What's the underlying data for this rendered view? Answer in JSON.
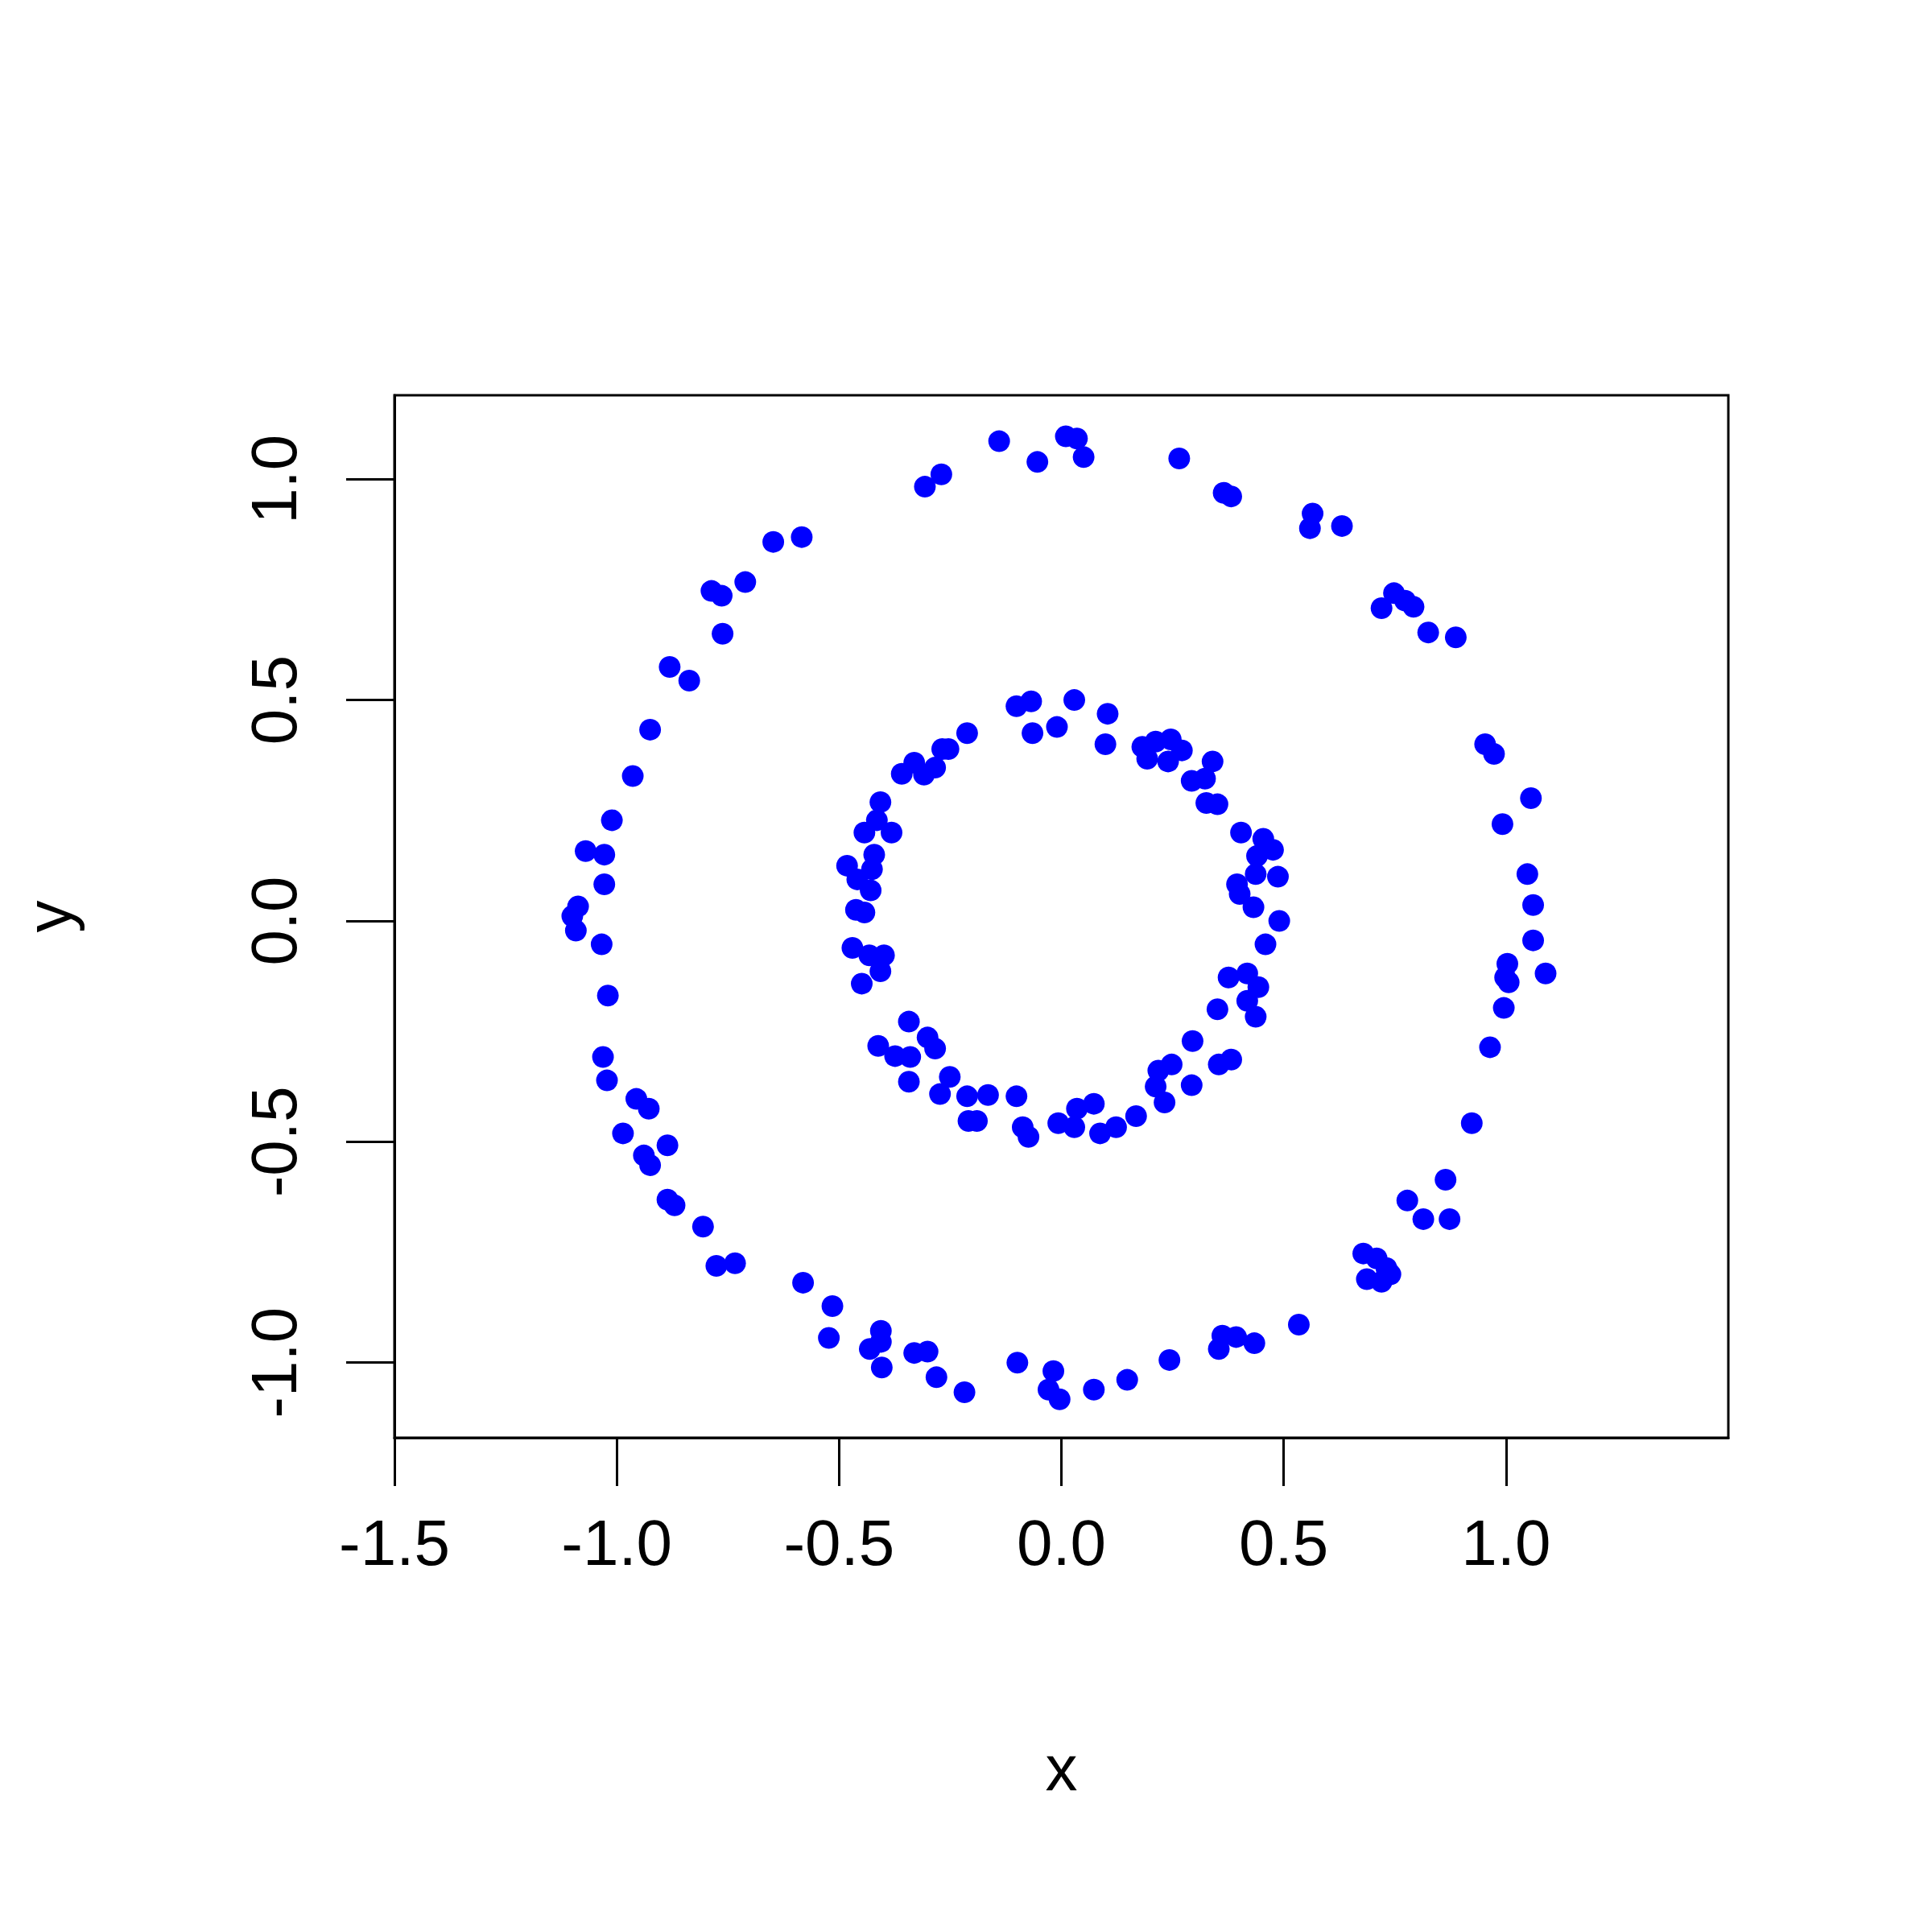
{
  "chart_data": {
    "type": "scatter",
    "xlabel": "x",
    "ylabel": "y",
    "xlim": [
      -1.5,
      1.5
    ],
    "ylim": [
      -1.17,
      1.19
    ],
    "xticks": [
      -1.5,
      {
        "value": -1,
        "label": "-1.0"
      },
      -0.5,
      {
        "value": 0,
        "label": "0.0"
      },
      0.5,
      {
        "value": 1,
        "label": "1.0"
      }
    ],
    "yticks": [
      {
        "value": -1,
        "label": "-1.0"
      },
      -0.5,
      {
        "value": 0,
        "label": "0.0"
      },
      0.5,
      {
        "value": 1,
        "label": "1.0"
      }
    ],
    "grid": false,
    "marker": "circle",
    "series": [
      {
        "color": "#0000ff",
        "x": [
          -0.14,
          0.01,
          0.035,
          0.05,
          -0.054,
          -0.307,
          -0.27,
          0.265,
          0.365,
          0.382,
          0.565,
          0.559,
          0.631,
          -0.648,
          -0.584,
          -0.787,
          -0.764,
          -0.711,
          -0.762,
          0.72,
          0.748,
          0.773,
          0.792,
          0.825,
          0.887,
          -0.881,
          -0.837,
          -0.925,
          -0.964,
          0.953,
          0.973,
          1.056,
          0.992,
          -1.011,
          -1.07,
          -1.028,
          -1.028,
          1.048,
          1.061,
          -1.087,
          -1.1,
          -1.092,
          -1.034,
          1.061,
          1.003,
          0.998,
          1.006,
          1.089,
          0.995,
          -1.02,
          0.964,
          -1.031,
          -1.022,
          -0.956,
          -0.928,
          0.923,
          -0.986,
          -0.886,
          -0.939,
          -0.925,
          0.864,
          0.778,
          -0.886,
          -0.87,
          0.814,
          0.873,
          -0.806,
          -0.776,
          -0.734,
          0.679,
          0.709,
          0.731,
          0.74,
          0.687,
          0.72,
          -0.581,
          -0.515,
          -0.523,
          0.534,
          -0.406,
          -0.406,
          -0.431,
          -0.404,
          -0.331,
          -0.301,
          -0.281,
          -0.218,
          0.362,
          0.393,
          0.434,
          0.354,
          0.243,
          0.148,
          -0.099,
          -0.018,
          -0.029,
          -0.004,
          0.073,
          -0.101,
          -0.068,
          0.029,
          0.104,
          0.099,
          -0.01,
          -0.065,
          -0.212,
          -0.254,
          -0.268,
          -0.331,
          -0.284,
          -0.309,
          -0.359,
          -0.407,
          -0.415,
          -0.382,
          -0.443,
          -0.421,
          -0.426,
          -0.482,
          -0.459,
          -0.429,
          -0.462,
          -0.443,
          -0.47,
          -0.432,
          -0.399,
          -0.407,
          -0.449,
          -0.343,
          -0.412,
          -0.374,
          -0.34,
          -0.301,
          -0.284,
          -0.343,
          -0.251,
          -0.273,
          -0.212,
          -0.165,
          -0.209,
          -0.19,
          -0.101,
          -0.087,
          -0.074,
          -0.007,
          0.029,
          0.035,
          0.073,
          0.087,
          0.123,
          0.168,
          0.232,
          0.212,
          0.218,
          0.248,
          0.293,
          0.295,
          0.354,
          0.382,
          0.351,
          0.376,
          0.418,
          0.443,
          0.418,
          0.437,
          0.459,
          0.49,
          0.432,
          0.401,
          0.395,
          0.487,
          0.437,
          0.44,
          0.476,
          0.454,
          0.404,
          0.326,
          0.351,
          0.323,
          0.293,
          0.34,
          0.271,
          0.246,
          0.212,
          0.182,
          0.193,
          0.24
        ],
        "values": [
          1.086,
          1.097,
          1.092,
          1.05,
          1.039,
          0.983,
          1.011,
          1.047,
          0.969,
          0.961,
          0.922,
          0.889,
          0.894,
          0.858,
          0.869,
          0.747,
          0.736,
          0.767,
          0.65,
          0.708,
          0.742,
          0.725,
          0.711,
          0.653,
          0.642,
          0.575,
          0.544,
          0.433,
          0.328,
          0.4,
          0.378,
          0.278,
          0.219,
          0.228,
          0.158,
          0.15,
          0.083,
          0.106,
          0.036,
          0.033,
          0.011,
          -0.022,
          -0.053,
          -0.044,
          -0.097,
          -0.128,
          -0.139,
          -0.119,
          -0.197,
          -0.169,
          -0.286,
          -0.308,
          -0.361,
          -0.403,
          -0.425,
          -0.458,
          -0.481,
          -0.508,
          -0.531,
          -0.553,
          -0.586,
          -0.633,
          -0.631,
          -0.644,
          -0.675,
          -0.675,
          -0.692,
          -0.781,
          -0.775,
          -0.753,
          -0.764,
          -0.786,
          -0.8,
          -0.811,
          -0.817,
          -0.819,
          -0.872,
          -0.944,
          -0.914,
          -0.928,
          -0.953,
          -0.969,
          -1.011,
          -0.978,
          -0.975,
          -1.033,
          -1.067,
          -0.939,
          -0.942,
          -0.956,
          -0.969,
          -0.994,
          -1.039,
          -1.0,
          -1.019,
          -1.061,
          -1.083,
          -1.061,
          0.486,
          0.497,
          0.5,
          0.469,
          0.4,
          0.439,
          0.425,
          0.425,
          0.389,
          0.389,
          0.358,
          0.347,
          0.331,
          0.333,
          0.269,
          0.228,
          0.2,
          0.2,
          0.15,
          0.117,
          0.125,
          0.094,
          0.069,
          0.025,
          0.019,
          -0.061,
          -0.078,
          -0.078,
          -0.114,
          -0.142,
          -0.228,
          -0.283,
          -0.306,
          -0.308,
          -0.264,
          -0.289,
          -0.364,
          -0.353,
          -0.392,
          -0.397,
          -0.394,
          -0.453,
          -0.453,
          -0.397,
          -0.467,
          -0.489,
          -0.458,
          -0.467,
          -0.425,
          -0.414,
          -0.481,
          -0.467,
          -0.442,
          -0.411,
          -0.375,
          -0.339,
          -0.325,
          -0.372,
          -0.272,
          -0.325,
          -0.314,
          -0.2,
          -0.128,
          -0.119,
          -0.15,
          -0.181,
          -0.217,
          -0.053,
          0,
          0.031,
          0.061,
          0.083,
          0.1,
          0.106,
          0.147,
          0.161,
          0.186,
          0.2,
          0.267,
          0.264,
          0.322,
          0.317,
          0.361,
          0.386,
          0.411,
          0.406,
          0.394,
          0.367,
          0.361
        ]
      }
    ]
  }
}
